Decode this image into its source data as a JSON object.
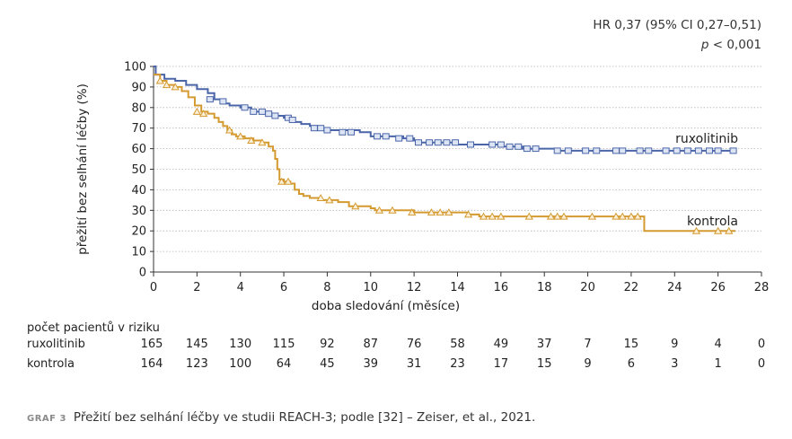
{
  "annotation": {
    "hr": "HR 0,37 (95% CI 0,27–0,51)",
    "p_symbol": "p",
    "p_value": " < 0,001"
  },
  "chart_data": {
    "type": "line",
    "title": "",
    "xlabel": "doba sledování (měsíce)",
    "ylabel": "přežití bez selhání léčby (%)",
    "xlim": [
      0,
      28
    ],
    "ylim": [
      0,
      100
    ],
    "x_ticks": [
      0,
      2,
      4,
      6,
      8,
      10,
      12,
      14,
      16,
      18,
      20,
      22,
      24,
      26,
      28
    ],
    "y_ticks": [
      0,
      10,
      20,
      30,
      40,
      50,
      60,
      70,
      80,
      90,
      100
    ],
    "grid": "horizontal dotted",
    "series": [
      {
        "name": "ruxolitinib",
        "color": "#4a66a8",
        "marker": "square",
        "steps": [
          [
            0,
            100
          ],
          [
            0.1,
            96
          ],
          [
            0.5,
            94
          ],
          [
            1,
            93
          ],
          [
            1.5,
            91
          ],
          [
            2,
            89
          ],
          [
            2.5,
            87
          ],
          [
            2.8,
            84
          ],
          [
            3.2,
            82
          ],
          [
            3.5,
            81
          ],
          [
            4,
            80
          ],
          [
            4.5,
            78
          ],
          [
            5,
            77
          ],
          [
            5.5,
            76
          ],
          [
            6,
            75
          ],
          [
            6.4,
            73
          ],
          [
            6.8,
            72
          ],
          [
            7.2,
            71
          ],
          [
            7.5,
            70
          ],
          [
            8,
            69
          ],
          [
            9,
            69
          ],
          [
            9.5,
            68
          ],
          [
            10,
            66
          ],
          [
            11,
            66
          ],
          [
            11.5,
            65
          ],
          [
            12,
            64
          ],
          [
            12.3,
            63
          ],
          [
            13.5,
            63
          ],
          [
            14,
            62
          ],
          [
            15,
            62
          ],
          [
            16,
            61
          ],
          [
            16.5,
            61
          ],
          [
            17,
            60
          ],
          [
            18,
            60
          ],
          [
            18.5,
            60
          ],
          [
            18.6,
            59
          ],
          [
            20,
            59
          ],
          [
            21,
            59
          ],
          [
            22,
            59
          ],
          [
            24,
            59
          ],
          [
            26,
            59
          ],
          [
            26.7,
            59
          ]
        ],
        "censored": [
          [
            2.6,
            84
          ],
          [
            3.2,
            83
          ],
          [
            4.2,
            80
          ],
          [
            4.6,
            78
          ],
          [
            5,
            78
          ],
          [
            5.3,
            77
          ],
          [
            5.6,
            76
          ],
          [
            6.2,
            75
          ],
          [
            6.4,
            74
          ],
          [
            7.4,
            70
          ],
          [
            7.7,
            70
          ],
          [
            8,
            69
          ],
          [
            8.7,
            68
          ],
          [
            9.1,
            68
          ],
          [
            10.3,
            66
          ],
          [
            10.7,
            66
          ],
          [
            11.3,
            65
          ],
          [
            11.8,
            65
          ],
          [
            12.2,
            63
          ],
          [
            12.7,
            63
          ],
          [
            13.1,
            63
          ],
          [
            13.5,
            63
          ],
          [
            13.9,
            63
          ],
          [
            14.6,
            62
          ],
          [
            15.6,
            62
          ],
          [
            16,
            62
          ],
          [
            16.4,
            61
          ],
          [
            16.8,
            61
          ],
          [
            17.2,
            60
          ],
          [
            17.6,
            60
          ],
          [
            18.6,
            59
          ],
          [
            19.1,
            59
          ],
          [
            19.9,
            59
          ],
          [
            20.4,
            59
          ],
          [
            21.3,
            59
          ],
          [
            21.6,
            59
          ],
          [
            22.4,
            59
          ],
          [
            22.8,
            59
          ],
          [
            23.6,
            59
          ],
          [
            24.1,
            59
          ],
          [
            24.6,
            59
          ],
          [
            25.1,
            59
          ],
          [
            25.6,
            59
          ],
          [
            26,
            59
          ],
          [
            26.7,
            59
          ]
        ]
      },
      {
        "name": "kontrola",
        "color": "#d49a30",
        "marker": "triangle",
        "steps": [
          [
            0,
            96
          ],
          [
            0.3,
            93
          ],
          [
            0.6,
            91
          ],
          [
            1,
            90
          ],
          [
            1.3,
            88
          ],
          [
            1.6,
            85
          ],
          [
            1.9,
            81
          ],
          [
            2.2,
            78
          ],
          [
            2.5,
            77
          ],
          [
            2.8,
            75
          ],
          [
            3,
            73
          ],
          [
            3.2,
            71
          ],
          [
            3.4,
            69
          ],
          [
            3.6,
            67
          ],
          [
            3.8,
            66
          ],
          [
            4.2,
            65
          ],
          [
            4.6,
            64
          ],
          [
            5,
            63
          ],
          [
            5.3,
            61
          ],
          [
            5.5,
            59
          ],
          [
            5.6,
            55
          ],
          [
            5.7,
            50
          ],
          [
            5.8,
            45
          ],
          [
            6,
            44
          ],
          [
            6.3,
            43
          ],
          [
            6.5,
            40
          ],
          [
            6.7,
            38
          ],
          [
            6.9,
            37
          ],
          [
            7.2,
            36
          ],
          [
            7.6,
            35
          ],
          [
            8,
            35
          ],
          [
            8.5,
            34
          ],
          [
            9,
            32
          ],
          [
            10,
            31
          ],
          [
            10.2,
            30
          ],
          [
            11,
            30
          ],
          [
            12,
            29
          ],
          [
            14,
            29
          ],
          [
            14.5,
            28
          ],
          [
            15,
            27
          ],
          [
            16,
            27
          ],
          [
            17,
            27
          ],
          [
            18,
            27
          ],
          [
            20,
            27
          ],
          [
            22.6,
            27
          ],
          [
            22.6,
            20
          ],
          [
            26.8,
            20
          ]
        ],
        "censored": [
          [
            0.3,
            93
          ],
          [
            0.6,
            91
          ],
          [
            1,
            90
          ],
          [
            2,
            78
          ],
          [
            2.3,
            77
          ],
          [
            3.5,
            69
          ],
          [
            4,
            66
          ],
          [
            4.5,
            64
          ],
          [
            5,
            63
          ],
          [
            5.9,
            44
          ],
          [
            6.2,
            44
          ],
          [
            7.7,
            36
          ],
          [
            8.1,
            35
          ],
          [
            9.3,
            32
          ],
          [
            10.4,
            30
          ],
          [
            11,
            30
          ],
          [
            11.9,
            29
          ],
          [
            12.8,
            29
          ],
          [
            13.2,
            29
          ],
          [
            13.6,
            29
          ],
          [
            14.5,
            28
          ],
          [
            15.2,
            27
          ],
          [
            15.6,
            27
          ],
          [
            16,
            27
          ],
          [
            17.3,
            27
          ],
          [
            18.3,
            27
          ],
          [
            18.6,
            27
          ],
          [
            18.9,
            27
          ],
          [
            20.2,
            27
          ],
          [
            21.3,
            27
          ],
          [
            21.6,
            27
          ],
          [
            22,
            27
          ],
          [
            22.3,
            27
          ],
          [
            25,
            20
          ],
          [
            26,
            20
          ],
          [
            26.5,
            20
          ]
        ]
      }
    ],
    "risk_table": {
      "title": "počet pacientů v riziku",
      "times": [
        0,
        2,
        4,
        6,
        8,
        10,
        12,
        14,
        16,
        18,
        20,
        22,
        24,
        26,
        28
      ],
      "rows": [
        {
          "label": "ruxolitinib",
          "values": [
            "165",
            "145",
            "130",
            "115",
            "92",
            "87",
            "76",
            "58",
            "49",
            "37",
            "7",
            "15",
            "9",
            "4",
            "0"
          ]
        },
        {
          "label": "kontrola",
          "values": [
            "164",
            "123",
            "100",
            "64",
            "45",
            "39",
            "31",
            "23",
            "17",
            "15",
            "9",
            "6",
            "3",
            "1",
            "0"
          ]
        }
      ]
    }
  },
  "caption": {
    "tag": "GRAF 3",
    "text": "Přežití bez selhání léčby ve studii REACH-3; podle [32] – Zeiser, et al., 2021."
  }
}
